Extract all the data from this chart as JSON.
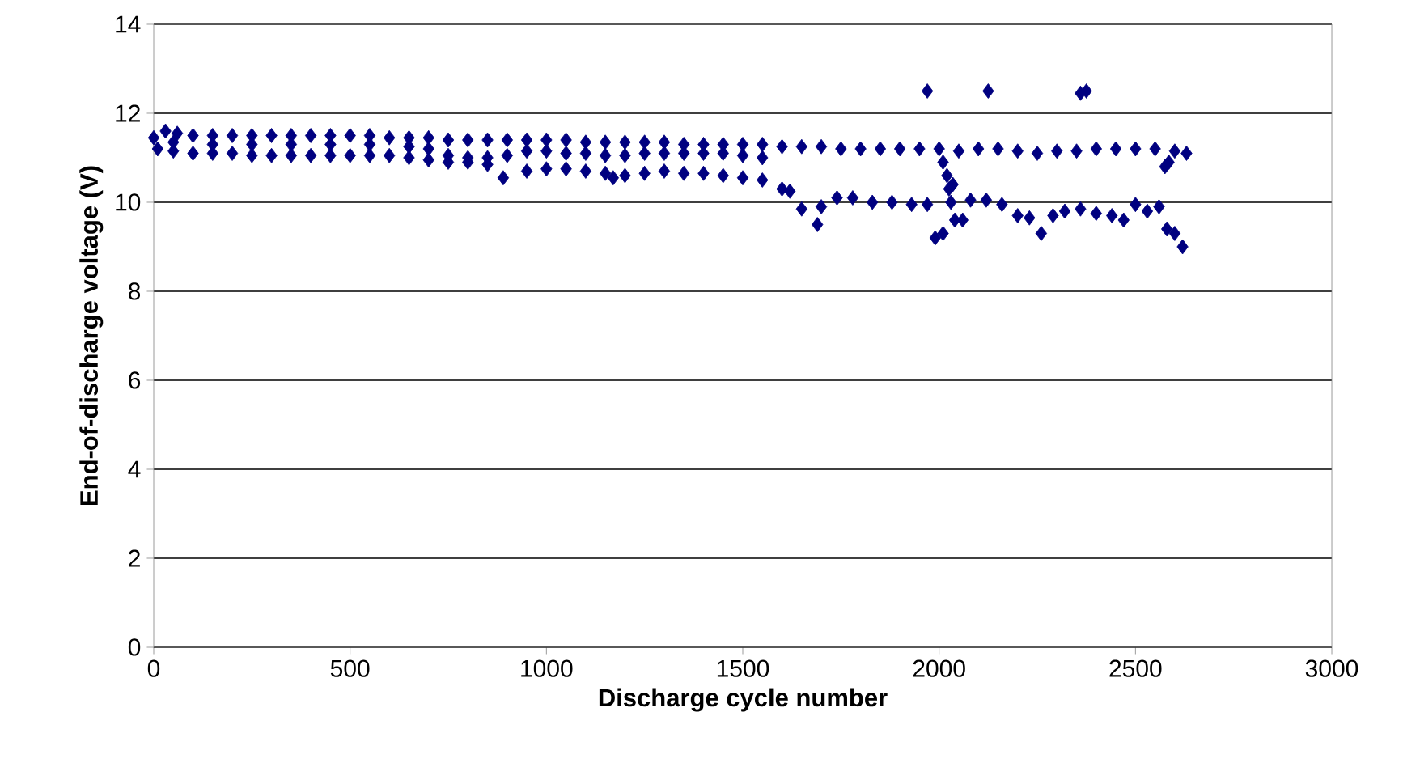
{
  "chart_data": {
    "type": "scatter",
    "xlabel": "Discharge cycle number",
    "ylabel": "End-of-discharge voltage (V)",
    "xlim": [
      0,
      3000
    ],
    "ylim": [
      0,
      14
    ],
    "xticks": [
      0,
      500,
      1000,
      1500,
      2000,
      2500,
      3000
    ],
    "yticks": [
      0,
      2,
      4,
      6,
      8,
      10,
      12,
      14
    ],
    "grid": "y",
    "marker": "diamond",
    "series": [
      {
        "color": "#000080",
        "x": [
          0,
          30,
          60,
          100,
          150,
          200,
          250,
          300,
          350,
          400,
          450,
          500,
          550,
          600,
          650,
          700,
          750,
          800,
          850,
          900,
          950,
          1000,
          1050,
          1100,
          1150,
          1200,
          1250,
          1300,
          1350,
          1400,
          1450,
          1500,
          1550,
          1600,
          1650,
          1700,
          1750,
          1800,
          1850,
          1900,
          1950,
          2000,
          2050,
          2100,
          2150,
          2200,
          2250,
          2300,
          2350,
          2400,
          2450,
          2500,
          2550,
          2600,
          2630,
          10,
          50,
          100,
          150,
          200,
          250,
          300,
          350,
          400,
          450,
          500,
          550,
          600,
          650,
          50,
          150,
          250,
          350,
          450,
          550,
          650,
          700,
          750,
          800,
          850,
          900,
          950,
          1000,
          1050,
          1100,
          1150,
          1200,
          1250,
          1300,
          1350,
          1400,
          1450,
          1500,
          1550,
          700,
          750,
          800,
          850,
          890,
          950,
          1000,
          1050,
          1100,
          1150,
          1170,
          1200,
          1250,
          1300,
          1350,
          1400,
          1450,
          1500,
          1550,
          1600,
          1620,
          1650,
          1690,
          1700,
          1740,
          1780,
          1830,
          1880,
          1930,
          1970,
          1990,
          2010,
          2040,
          2060,
          2080,
          2120,
          2160,
          2200,
          2230,
          2260,
          2290,
          2320,
          2360,
          2400,
          2440,
          2470,
          2500,
          2530,
          2560,
          2580,
          2600,
          2620,
          2010,
          2020,
          2025,
          2030,
          2035,
          2575,
          2585,
          1970,
          2125,
          2360,
          2375
        ],
        "values": [
          11.45,
          11.6,
          11.55,
          11.5,
          11.5,
          11.5,
          11.5,
          11.5,
          11.5,
          11.5,
          11.5,
          11.5,
          11.5,
          11.45,
          11.45,
          11.45,
          11.4,
          11.4,
          11.4,
          11.4,
          11.4,
          11.4,
          11.4,
          11.35,
          11.35,
          11.35,
          11.35,
          11.35,
          11.3,
          11.3,
          11.3,
          11.3,
          11.3,
          11.25,
          11.25,
          11.25,
          11.2,
          11.2,
          11.2,
          11.2,
          11.2,
          11.2,
          11.15,
          11.2,
          11.2,
          11.15,
          11.1,
          11.15,
          11.15,
          11.2,
          11.2,
          11.2,
          11.2,
          11.15,
          11.1,
          11.2,
          11.15,
          11.1,
          11.1,
          11.1,
          11.05,
          11.05,
          11.05,
          11.05,
          11.05,
          11.05,
          11.05,
          11.05,
          11.0,
          11.35,
          11.3,
          11.3,
          11.3,
          11.3,
          11.3,
          11.25,
          11.2,
          11.05,
          11.0,
          11.0,
          11.05,
          11.15,
          11.15,
          11.1,
          11.1,
          11.05,
          11.05,
          11.1,
          11.1,
          11.1,
          11.1,
          11.1,
          11.05,
          11.0,
          10.95,
          10.9,
          10.9,
          10.85,
          10.55,
          10.7,
          10.75,
          10.75,
          10.7,
          10.65,
          10.55,
          10.6,
          10.65,
          10.7,
          10.65,
          10.65,
          10.6,
          10.55,
          10.5,
          10.3,
          10.25,
          9.85,
          9.5,
          9.9,
          10.1,
          10.1,
          10.0,
          10.0,
          9.95,
          9.95,
          9.2,
          9.3,
          9.6,
          9.6,
          10.05,
          10.05,
          9.95,
          9.7,
          9.65,
          9.3,
          9.7,
          9.8,
          9.85,
          9.75,
          9.7,
          9.6,
          9.95,
          9.8,
          9.9,
          9.4,
          9.3,
          9.0,
          10.9,
          10.6,
          10.3,
          10.0,
          10.4,
          10.8,
          10.9,
          12.5,
          12.5,
          12.45,
          12.5
        ]
      }
    ]
  }
}
